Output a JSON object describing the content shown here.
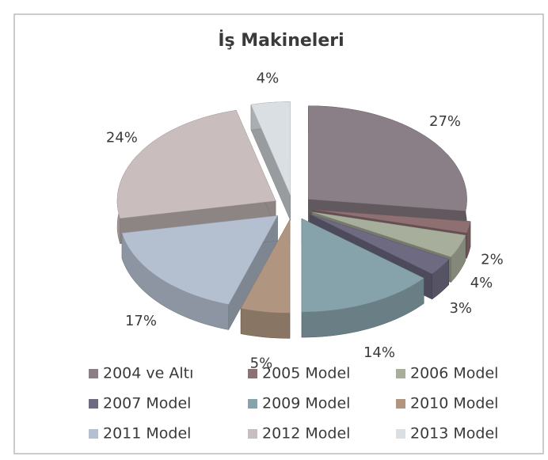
{
  "chart_data": {
    "type": "pie",
    "title": "İş Makineleri",
    "categories": [
      "2004 ve Altı",
      "2005 Model",
      "2006 Model",
      "2007 Model",
      "2009 Model",
      "2010 Model",
      "2011 Model",
      "2012 Model",
      "2013 Model"
    ],
    "values": [
      27,
      2,
      4,
      3,
      14,
      5,
      17,
      24,
      4
    ],
    "value_labels": [
      "27%",
      "2%",
      "4%",
      "3%",
      "14%",
      "5%",
      "17%",
      "24%",
      "4%"
    ],
    "colors": [
      "#8a7f86",
      "#8e6f72",
      "#a8ae9c",
      "#6e6a82",
      "#86a2aa",
      "#b09680",
      "#b4bfcf",
      "#c9bebd",
      "#d9dfe2"
    ],
    "legend": "bottom"
  }
}
